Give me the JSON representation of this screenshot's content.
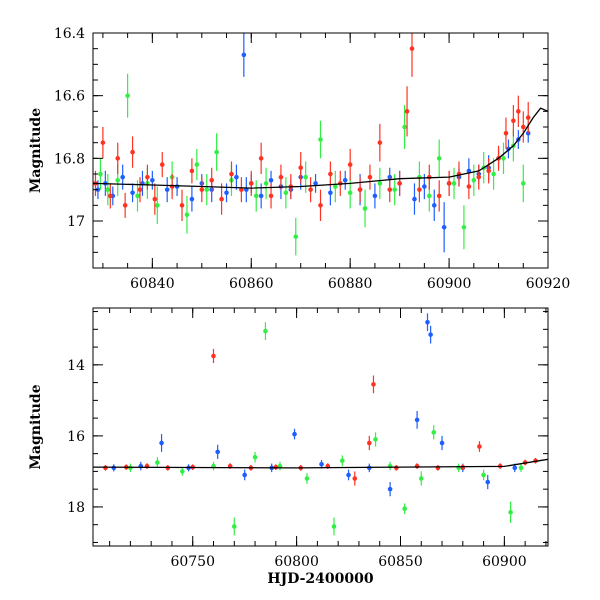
{
  "chart_data": [
    {
      "type": "scatter",
      "title": "",
      "xlabel": "",
      "ylabel": "Magnitude",
      "xlim": [
        60828,
        60920
      ],
      "ylim": [
        17.15,
        16.4
      ],
      "y_inverted": true,
      "xticks": [
        60840,
        60860,
        60880,
        60900,
        60920
      ],
      "xtick_labels": [
        "60840",
        "60860",
        "60880",
        "60900",
        "60920"
      ],
      "yticks": [
        16.4,
        16.6,
        16.8,
        17.0
      ],
      "ytick_labels": [
        "16.4",
        "16.6",
        "16.8",
        "17"
      ],
      "grid": false,
      "legend": "none",
      "series": [
        {
          "color": "#1f5fff",
          "x": [
            60829,
            60830.5,
            60832,
            60834,
            60836,
            60838,
            60840,
            60843,
            60845,
            60848,
            60850,
            60852,
            60855,
            60857,
            60858.5,
            60859,
            60860,
            60862,
            60864,
            60866,
            60868,
            60870,
            60873,
            60876,
            60879,
            60882,
            60885,
            60888,
            60890,
            60893,
            60895,
            60897,
            60899,
            60900,
            60902,
            60904,
            60906,
            60908,
            60910,
            60912,
            60914,
            60916
          ],
          "y": [
            16.9,
            16.88,
            16.92,
            16.86,
            16.91,
            16.88,
            16.87,
            16.9,
            16.89,
            16.93,
            16.88,
            16.9,
            16.91,
            16.86,
            16.47,
            16.9,
            16.88,
            16.92,
            16.87,
            16.89,
            16.9,
            16.86,
            16.88,
            16.91,
            16.87,
            16.9,
            16.92,
            16.86,
            16.88,
            16.93,
            16.89,
            16.95,
            17.02,
            16.88,
            16.86,
            16.84,
            16.85,
            16.83,
            16.8,
            16.77,
            16.74,
            16.72
          ],
          "yerr": [
            0.03,
            0.04,
            0.03,
            0.04,
            0.03,
            0.04,
            0.03,
            0.04,
            0.03,
            0.04,
            0.03,
            0.04,
            0.03,
            0.04,
            0.07,
            0.04,
            0.03,
            0.04,
            0.03,
            0.04,
            0.03,
            0.04,
            0.03,
            0.04,
            0.03,
            0.05,
            0.04,
            0.03,
            0.04,
            0.05,
            0.04,
            0.05,
            0.08,
            0.04,
            0.03,
            0.04,
            0.03,
            0.04,
            0.03,
            0.03,
            0.03,
            0.03
          ]
        },
        {
          "color": "#33ee44",
          "x": [
            60829.5,
            60831,
            60833,
            60835,
            60837,
            60839,
            60841,
            60844,
            60847,
            60849,
            60851,
            60853,
            60856,
            60861,
            60863,
            60867,
            60869,
            60871,
            60874,
            60877,
            60880,
            60883,
            60886,
            60889,
            60891,
            60894,
            60896,
            60898,
            60901,
            60903,
            60905,
            60907,
            60909,
            60911,
            60913,
            60915
          ],
          "y": [
            16.85,
            16.9,
            16.87,
            16.6,
            16.92,
            16.88,
            16.95,
            16.86,
            16.98,
            16.82,
            16.9,
            16.78,
            16.87,
            16.92,
            16.88,
            16.91,
            17.05,
            16.86,
            16.74,
            16.89,
            16.91,
            16.96,
            16.88,
            16.9,
            16.7,
            16.86,
            16.92,
            16.8,
            16.88,
            17.02,
            16.87,
            16.83,
            16.85,
            16.8,
            16.76,
            16.88
          ],
          "yerr": [
            0.05,
            0.05,
            0.05,
            0.07,
            0.05,
            0.05,
            0.06,
            0.05,
            0.06,
            0.05,
            0.05,
            0.06,
            0.05,
            0.05,
            0.05,
            0.05,
            0.06,
            0.05,
            0.06,
            0.05,
            0.05,
            0.06,
            0.05,
            0.05,
            0.07,
            0.05,
            0.05,
            0.06,
            0.05,
            0.07,
            0.05,
            0.05,
            0.05,
            0.05,
            0.05,
            0.06
          ]
        },
        {
          "color": "#ff3322",
          "x": [
            60828.5,
            60830,
            60831.5,
            60833,
            60834.5,
            60836,
            60837.5,
            60839,
            60840.5,
            60842,
            60844,
            60846,
            60848,
            60850,
            60852,
            60854,
            60856,
            60858,
            60860,
            60862,
            60864,
            60866,
            60868,
            60870,
            60872,
            60874,
            60876,
            60878,
            60880,
            60882,
            60884,
            60886,
            60888,
            60890,
            60891.5,
            60892.5,
            60894,
            60896,
            60898,
            60900,
            60902,
            60904,
            60906,
            60908,
            60910,
            60911.5,
            60913,
            60914,
            60915,
            60916
          ],
          "y": [
            16.88,
            16.75,
            16.92,
            16.8,
            16.95,
            16.78,
            16.9,
            16.86,
            16.93,
            16.82,
            16.89,
            16.95,
            16.84,
            16.9,
            16.87,
            16.93,
            16.85,
            16.9,
            16.88,
            16.8,
            16.92,
            16.86,
            16.89,
            16.83,
            16.9,
            16.95,
            16.85,
            16.88,
            16.82,
            16.9,
            16.86,
            16.75,
            16.9,
            16.88,
            16.65,
            16.45,
            16.9,
            16.86,
            16.92,
            16.88,
            16.85,
            16.89,
            16.86,
            16.84,
            16.8,
            16.72,
            16.68,
            16.65,
            16.7,
            16.67
          ],
          "yerr": [
            0.04,
            0.05,
            0.04,
            0.05,
            0.04,
            0.05,
            0.04,
            0.04,
            0.05,
            0.04,
            0.04,
            0.05,
            0.04,
            0.04,
            0.04,
            0.05,
            0.04,
            0.04,
            0.04,
            0.05,
            0.04,
            0.04,
            0.04,
            0.05,
            0.04,
            0.05,
            0.04,
            0.04,
            0.05,
            0.04,
            0.04,
            0.06,
            0.04,
            0.04,
            0.08,
            0.09,
            0.04,
            0.04,
            0.05,
            0.04,
            0.04,
            0.04,
            0.04,
            0.04,
            0.04,
            0.05,
            0.05,
            0.05,
            0.05,
            0.05
          ]
        }
      ],
      "model_line": {
        "x": [
          60828,
          60840,
          60850,
          60860,
          60870,
          60880,
          60890,
          60900,
          60906,
          60910,
          60913,
          60915,
          60917,
          60918.5,
          60920
        ],
        "y": [
          16.88,
          16.885,
          16.89,
          16.895,
          16.89,
          16.88,
          16.865,
          16.86,
          16.84,
          16.8,
          16.76,
          16.72,
          16.67,
          16.64,
          16.65
        ]
      }
    },
    {
      "type": "scatter",
      "title": "",
      "xlabel": "HJD-2400000",
      "ylabel": "Magnitude",
      "xlim": [
        60702,
        60921
      ],
      "ylim": [
        19.1,
        12.4
      ],
      "y_inverted": true,
      "xticks": [
        60750,
        60800,
        60850,
        60900
      ],
      "xtick_labels": [
        "60750",
        "60800",
        "60850",
        "60900"
      ],
      "yticks": [
        14,
        16,
        18
      ],
      "ytick_labels": [
        "14",
        "16",
        "18"
      ],
      "grid": false,
      "legend": "none",
      "series": [
        {
          "color": "#1f5fff",
          "x": [
            60712,
            60725,
            60735,
            60748,
            60762,
            60775,
            60788,
            60799,
            60812,
            60825,
            60835,
            60845,
            60858,
            60863,
            60864.5,
            60870,
            60880,
            60892,
            60905
          ],
          "y": [
            16.9,
            16.85,
            16.2,
            16.9,
            16.45,
            17.1,
            16.9,
            15.95,
            16.8,
            17.1,
            16.9,
            17.5,
            15.55,
            12.8,
            13.15,
            16.2,
            16.9,
            17.3,
            16.9
          ],
          "yerr": [
            0.1,
            0.12,
            0.25,
            0.1,
            0.2,
            0.15,
            0.12,
            0.15,
            0.12,
            0.15,
            0.12,
            0.2,
            0.25,
            0.25,
            0.25,
            0.2,
            0.12,
            0.2,
            0.12
          ]
        },
        {
          "color": "#33ee44",
          "x": [
            60720,
            60733,
            60745,
            60760,
            60770,
            60780,
            60785,
            60792,
            60805,
            60818,
            60822,
            60838,
            60845,
            60852,
            60860,
            60866,
            60878,
            60890,
            60903,
            60908
          ],
          "y": [
            16.9,
            16.75,
            17.0,
            16.85,
            18.55,
            16.6,
            13.05,
            16.85,
            17.2,
            18.55,
            16.7,
            16.1,
            16.85,
            18.05,
            17.2,
            15.9,
            16.9,
            17.1,
            18.15,
            16.9
          ],
          "yerr": [
            0.12,
            0.15,
            0.12,
            0.12,
            0.25,
            0.15,
            0.25,
            0.12,
            0.15,
            0.25,
            0.15,
            0.2,
            0.12,
            0.15,
            0.2,
            0.2,
            0.12,
            0.15,
            0.3,
            0.12
          ]
        },
        {
          "color": "#ff3322",
          "x": [
            60708,
            60718,
            60728,
            60738,
            60750,
            60760,
            60768,
            60778,
            60790,
            60802,
            60815,
            60828,
            60835,
            60837,
            60848,
            60858,
            60868,
            60880,
            60888,
            60898,
            60910,
            60915
          ],
          "y": [
            16.9,
            16.88,
            16.85,
            16.9,
            16.88,
            13.75,
            16.85,
            16.9,
            16.88,
            16.9,
            16.85,
            17.2,
            16.2,
            14.55,
            16.9,
            16.85,
            16.9,
            16.88,
            16.3,
            16.85,
            16.75,
            16.7
          ],
          "yerr": [
            0.08,
            0.08,
            0.08,
            0.08,
            0.08,
            0.2,
            0.08,
            0.08,
            0.08,
            0.08,
            0.08,
            0.2,
            0.2,
            0.25,
            0.08,
            0.08,
            0.08,
            0.08,
            0.15,
            0.08,
            0.08,
            0.08
          ]
        }
      ],
      "model_line": {
        "x": [
          60702,
          60750,
          60800,
          60850,
          60900,
          60921
        ],
        "y": [
          16.88,
          16.89,
          16.9,
          16.88,
          16.86,
          16.66
        ]
      }
    }
  ]
}
